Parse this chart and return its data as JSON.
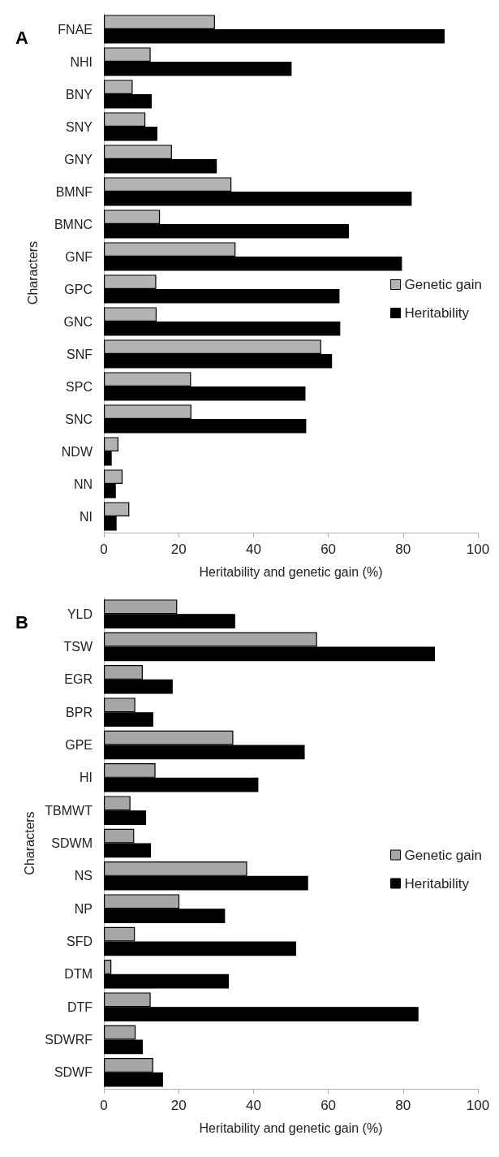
{
  "chart_data": [
    {
      "type": "bar",
      "orientation": "horizontal",
      "title": "A",
      "xlabel": "Heritability and genetic gain (%)",
      "ylabel": "Characters",
      "categories": [
        "FNAE",
        "NHI",
        "BNY",
        "SNY",
        "GNY",
        "BMNF",
        "BMNC",
        "GNF",
        "GPC",
        "GNC",
        "SNF",
        "SPC",
        "SNC",
        "NDW",
        "NN",
        "NI"
      ],
      "series": [
        {
          "name": "Genetic gain",
          "color": "#b3b3b3",
          "values": [
            29.7,
            12.5,
            7.7,
            11.1,
            18.2,
            34.1,
            15.0,
            35.2,
            14.0,
            14.1,
            58.1,
            23.3,
            23.4,
            3.9,
            5.0,
            6.8
          ]
        },
        {
          "name": "Heritability",
          "color": "#000000",
          "values": [
            91.1,
            50.2,
            12.8,
            14.3,
            30.2,
            82.3,
            65.5,
            79.7,
            63.0,
            63.2,
            61.0,
            53.9,
            54.1,
            2.1,
            3.2,
            3.4
          ]
        }
      ],
      "xlim": [
        0,
        100
      ],
      "xticks": [
        0,
        20,
        40,
        60,
        80,
        100
      ],
      "grid": false,
      "legend": "right"
    },
    {
      "type": "bar",
      "orientation": "horizontal",
      "title": "B",
      "xlabel": "Heritability and genetic gain (%)",
      "ylabel": "Characters",
      "categories": [
        "YLD",
        "TSW",
        "EGR",
        "BPR",
        "GPE",
        "HI",
        "TBMWT",
        "SDWM",
        "NS",
        "NP",
        "SFD",
        "DTM",
        "DTF",
        "SDWRF",
        "SDWF"
      ],
      "series": [
        {
          "name": "Genetic gain",
          "color": "#a6a6a6",
          "values": [
            19.6,
            57.0,
            10.4,
            8.4,
            34.6,
            13.8,
            7.1,
            8.1,
            38.3,
            20.2,
            8.3,
            2.0,
            12.5,
            8.5,
            13.2
          ]
        },
        {
          "name": "Heritability",
          "color": "#000000",
          "values": [
            35.1,
            88.5,
            18.4,
            13.2,
            53.7,
            41.3,
            11.3,
            12.6,
            54.6,
            32.4,
            51.4,
            33.4,
            84.1,
            10.4,
            15.8
          ]
        }
      ],
      "xlim": [
        0,
        100
      ],
      "xticks": [
        0,
        20,
        40,
        60,
        80,
        100
      ],
      "grid": false,
      "legend": "right"
    }
  ]
}
